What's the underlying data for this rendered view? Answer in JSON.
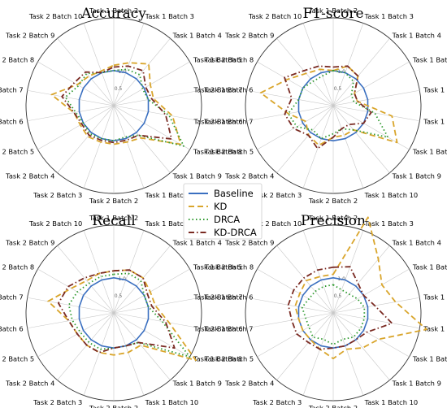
{
  "chart_data": {
    "type": "radar",
    "categories": [
      "Task 1 Batch 2",
      "Task 1 Batch 3",
      "Task 1 Batch 4",
      "Task 1 Batch 5",
      "Task 1 Batch 6",
      "Task 1 Batch 7",
      "Task 1 Batch 8",
      "Task 1 Batch 9",
      "Task 1 Batch 10",
      "Task 2 Batch 2",
      "Task 2 Batch 3",
      "Task 2 Batch 4",
      "Task 2 Batch 5",
      "Task 2 Batch 6",
      "Task 2 Batch 7",
      "Task 2 Batch 8",
      "Task 2 Batch 9",
      "Task 2 Batch 10"
    ],
    "radial_ticks": [
      "0.5",
      "1.0"
    ],
    "rlim": [
      0,
      2.5
    ],
    "legend": {
      "placement": "center",
      "entries": [
        {
          "name": "Baseline",
          "color": "#3a6fc0",
          "style": "solid"
        },
        {
          "name": "KD",
          "color": "#d9a52b",
          "style": "dashed"
        },
        {
          "name": "DRCA",
          "color": "#2f9a2f",
          "style": "dotted"
        },
        {
          "name": "KD-DRCA",
          "color": "#7a2a22",
          "style": "dashdot"
        }
      ]
    },
    "charts": [
      {
        "title": "Accuracy",
        "series": [
          {
            "name": "Baseline",
            "values": [
              1,
              1,
              1,
              1,
              1,
              1,
              1,
              1,
              1,
              1,
              1,
              1,
              1,
              1,
              1,
              1,
              1,
              1
            ]
          },
          {
            "name": "KD",
            "values": [
              1.15,
              1.3,
              1.55,
              1.2,
              1.15,
              1.7,
              2.2,
              1.2,
              1.1,
              1.1,
              1.1,
              1.15,
              1.1,
              1.15,
              1.8,
              1.2,
              1.1,
              1.05
            ]
          },
          {
            "name": "DRCA",
            "values": [
              1.0,
              1.1,
              1.15,
              0.95,
              1.0,
              1.6,
              2.3,
              1.1,
              0.95,
              1.0,
              1.0,
              1.05,
              1.0,
              1.1,
              1.4,
              1.15,
              1.2,
              1.0
            ]
          },
          {
            "name": "KD-DRCA",
            "values": [
              1.1,
              1.2,
              1.3,
              1.05,
              1.1,
              1.5,
              1.9,
              1.1,
              1.05,
              1.05,
              1.05,
              1.1,
              1.05,
              1.15,
              1.5,
              1.3,
              1.25,
              1.0
            ]
          }
        ]
      },
      {
        "title": "F1-score",
        "series": [
          {
            "name": "Baseline",
            "values": [
              1,
              1,
              1,
              1,
              1,
              1,
              1,
              1,
              1,
              1,
              1,
              1,
              1,
              1,
              1,
              1,
              1,
              1
            ]
          },
          {
            "name": "KD",
            "values": [
              1.0,
              1.2,
              1.1,
              0.7,
              0.7,
              1.7,
              2.1,
              0.9,
              0.9,
              0.9,
              1.2,
              1.1,
              0.9,
              1.3,
              2.1,
              1.5,
              1.2,
              1.1
            ]
          },
          {
            "name": "DRCA",
            "values": [
              1.0,
              1.0,
              0.9,
              0.6,
              0.6,
              1.2,
              1.8,
              0.9,
              0.7,
              0.8,
              1.0,
              0.9,
              1.2,
              1.3,
              1.0,
              1.0,
              0.9,
              0.9
            ]
          },
          {
            "name": "KD-DRCA",
            "values": [
              1.1,
              1.2,
              1.1,
              0.7,
              0.7,
              1.1,
              1.0,
              0.7,
              0.7,
              0.9,
              1.3,
              1.1,
              1.3,
              1.4,
              1.2,
              1.6,
              1.3,
              1.2
            ]
          }
        ]
      },
      {
        "title": "Recall",
        "series": [
          {
            "name": "Baseline",
            "values": [
              1,
              1,
              1,
              1,
              1,
              1,
              1,
              1,
              1,
              1,
              1,
              1,
              1,
              1,
              1,
              1,
              1,
              1
            ]
          },
          {
            "name": "KD",
            "values": [
              1.2,
              1.3,
              1.3,
              1.2,
              1.2,
              1.6,
              2.7,
              1.2,
              1.2,
              1.2,
              1.2,
              1.2,
              1.2,
              1.3,
              1.9,
              1.4,
              1.2,
              1.2
            ]
          },
          {
            "name": "DRCA",
            "values": [
              1.1,
              1.2,
              1.2,
              1.0,
              1.0,
              1.4,
              2.5,
              1.1,
              1.0,
              1.0,
              1.1,
              1.1,
              1.1,
              1.2,
              1.3,
              1.2,
              1.1,
              1.1
            ]
          },
          {
            "name": "KD-DRCA",
            "values": [
              1.2,
              1.3,
              1.3,
              1.1,
              1.1,
              1.5,
              2.0,
              1.1,
              1.0,
              1.0,
              1.2,
              1.2,
              1.2,
              1.3,
              1.6,
              1.5,
              1.3,
              1.2
            ]
          }
        ]
      },
      {
        "title": "Precision",
        "series": [
          {
            "name": "Baseline",
            "values": [
              1,
              1,
              1,
              1,
              1,
              1,
              1,
              1,
              1,
              1,
              1,
              1,
              1,
              1,
              1,
              1,
              1,
              1
            ]
          },
          {
            "name": "KD",
            "values": [
              1.1,
              2.9,
              2.0,
              1.6,
              1.8,
              2.7,
              1.5,
              1.3,
              1.1,
              1.3,
              1.1,
              1.0,
              1.0,
              1.0,
              1.1,
              1.1,
              1.2,
              1.1
            ]
          },
          {
            "name": "DRCA",
            "values": [
              0.8,
              0.7,
              0.7,
              0.8,
              0.9,
              0.9,
              0.9,
              0.9,
              0.8,
              0.9,
              0.8,
              0.9,
              0.8,
              0.8,
              0.9,
              0.8,
              0.8,
              0.8
            ]
          },
          {
            "name": "KD-DRCA",
            "values": [
              1.3,
              1.4,
              1.1,
              1.0,
              1.2,
              1.7,
              1.1,
              1.0,
              1.0,
              1.0,
              1.1,
              1.1,
              1.2,
              1.2,
              1.3,
              1.3,
              1.3,
              1.3
            ]
          }
        ]
      }
    ]
  }
}
